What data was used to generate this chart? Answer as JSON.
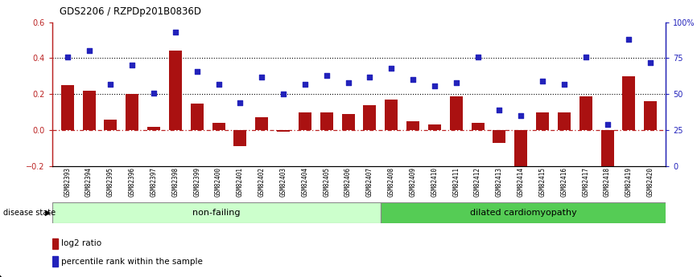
{
  "title": "GDS2206 / RZPDp201B0836D",
  "samples": [
    "GSM82393",
    "GSM82394",
    "GSM82395",
    "GSM82396",
    "GSM82397",
    "GSM82398",
    "GSM82399",
    "GSM82400",
    "GSM82401",
    "GSM82402",
    "GSM82403",
    "GSM82404",
    "GSM82405",
    "GSM82406",
    "GSM82407",
    "GSM82408",
    "GSM82409",
    "GSM82410",
    "GSM82411",
    "GSM82412",
    "GSM82413",
    "GSM82414",
    "GSM82415",
    "GSM82416",
    "GSM82417",
    "GSM82418",
    "GSM82419",
    "GSM82420"
  ],
  "log2_ratio": [
    0.25,
    0.22,
    0.06,
    0.2,
    0.02,
    0.44,
    0.15,
    0.04,
    -0.09,
    0.07,
    -0.01,
    0.1,
    0.1,
    0.09,
    0.14,
    0.17,
    0.05,
    0.03,
    0.19,
    0.04,
    -0.07,
    -0.2,
    0.1,
    0.1,
    0.19,
    -0.2,
    0.3,
    0.16
  ],
  "percentile_rank": [
    76,
    80,
    57,
    70,
    51,
    93,
    66,
    57,
    44,
    62,
    50,
    57,
    63,
    58,
    62,
    68,
    60,
    56,
    58,
    76,
    39,
    35,
    59,
    57,
    76,
    29,
    88,
    72
  ],
  "non_failing_count": 15,
  "ylim_left": [
    -0.2,
    0.6
  ],
  "ylim_right": [
    0,
    100
  ],
  "yticks_left": [
    -0.2,
    0.0,
    0.2,
    0.4,
    0.6
  ],
  "yticks_right": [
    0,
    25,
    50,
    75,
    100
  ],
  "ytick_labels_right": [
    "0",
    "25",
    "50",
    "75",
    "100%"
  ],
  "bar_color": "#aa1111",
  "dot_color": "#2222bb",
  "bg_color": "#ffffff",
  "nonfailing_label": "non-failing",
  "dilated_label": "dilated cardiomyopathy",
  "legend_bar": "log2 ratio",
  "legend_dot": "percentile rank within the sample",
  "disease_state_label": "disease state",
  "nonfailing_color": "#ccffcc",
  "dilated_color": "#55cc55"
}
